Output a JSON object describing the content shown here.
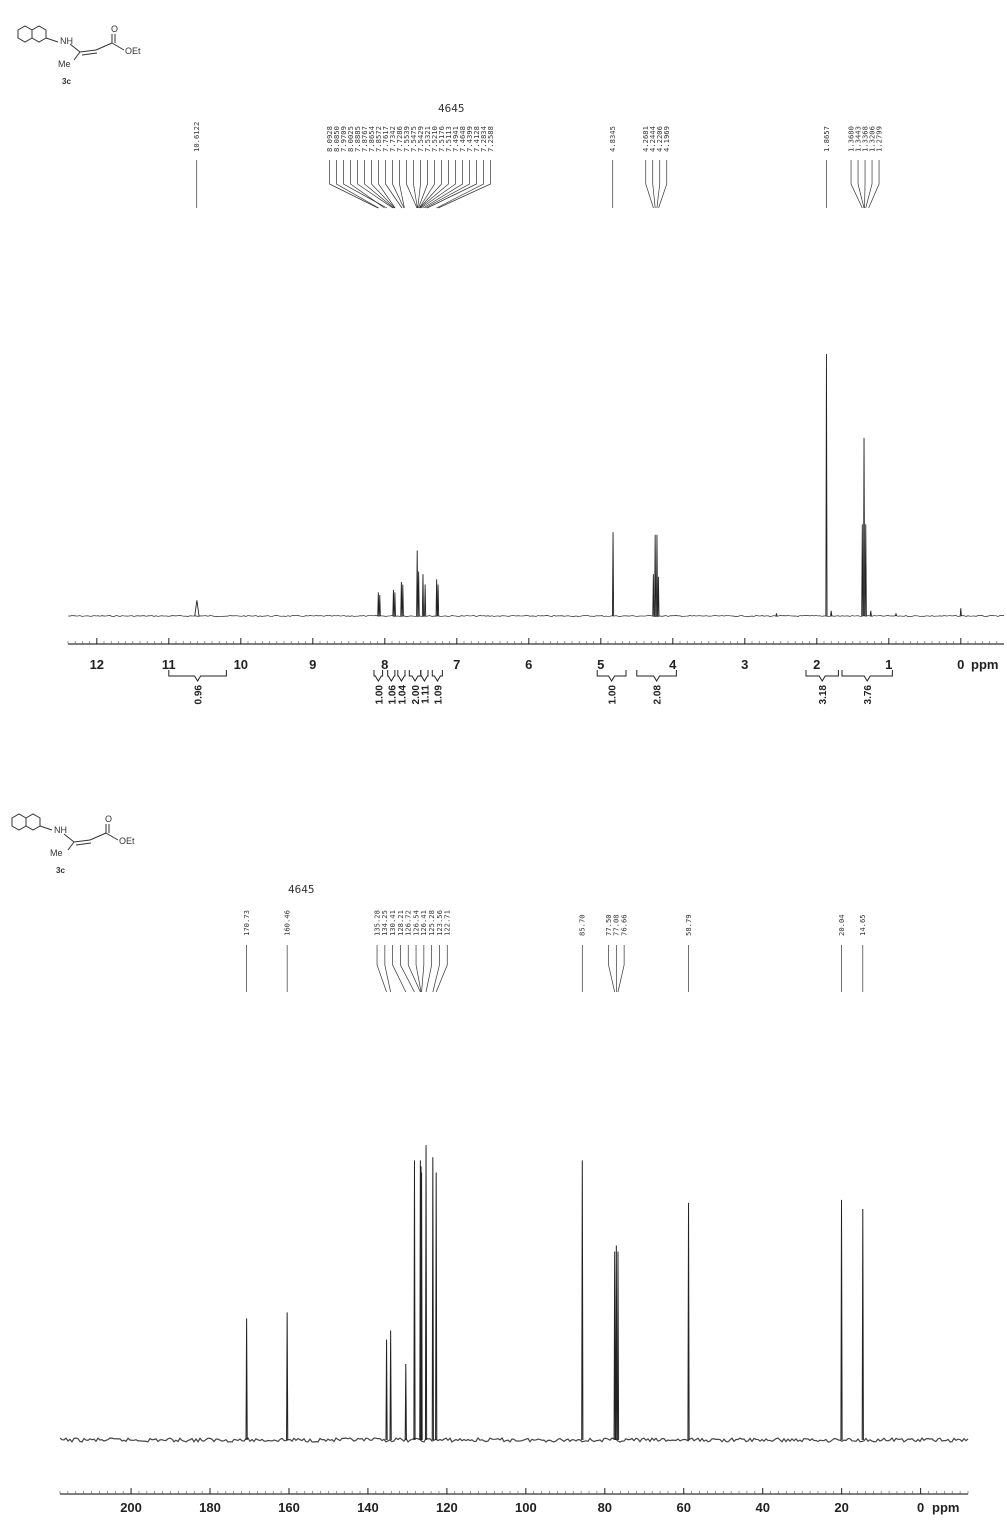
{
  "molecule": {
    "labels": {
      "nh": "NH",
      "me": "Me",
      "carbonyl_o": "O",
      "oet": "OEt"
    },
    "compound_label": "3c"
  },
  "chart_data": [
    {
      "type": "line",
      "sample_id": "4645",
      "xlabel": "ppm",
      "xlim": [
        12.4,
        -0.6
      ],
      "x_ticks": [
        12,
        11,
        10,
        9,
        8,
        7,
        6,
        5,
        4,
        3,
        2,
        1,
        0
      ],
      "grid": false,
      "peak_labels": [
        {
          "group": [
            10.6122
          ],
          "labels": [
            "10.6122"
          ],
          "anchor": 10.6122
        },
        {
          "group": [
            8.0928,
            8.085,
            7.9709,
            8.0025,
            7.8885,
            7.8767,
            7.8654,
            7.8572,
            7.7617,
            7.7342,
            7.7286,
            7.5539,
            7.5475,
            7.5429,
            7.5321,
            7.521,
            7.5176,
            7.5113,
            7.4941,
            7.4648,
            7.4399,
            7.4128,
            7.2834,
            7.2588
          ],
          "labels": [
            "8.0928",
            "8.0850",
            "7.9709",
            "8.0025",
            "7.8885",
            "7.8767",
            "7.8654",
            "7.8572",
            "7.7617",
            "7.7342",
            "7.7286",
            "7.5539",
            "7.5475",
            "7.5429",
            "7.5321",
            "7.5210",
            "7.5176",
            "7.5113",
            "7.4941",
            "7.4648",
            "7.4399",
            "7.4128",
            "7.2834",
            "7.2588"
          ],
          "anchor": 7.65
        },
        {
          "group": [
            4.8345
          ],
          "labels": [
            "4.8345"
          ],
          "anchor": 4.8345
        },
        {
          "group": [
            4.2681,
            4.2444,
            4.2206,
            4.1969
          ],
          "labels": [
            "4.2681",
            "4.2444",
            "4.2206",
            "4.1969"
          ],
          "anchor": 4.23
        },
        {
          "group": [
            1.8657
          ],
          "labels": [
            "1.8657"
          ],
          "anchor": 1.8657
        },
        {
          "group": [
            1.368,
            1.3443,
            1.3368,
            1.3206,
            1.2799
          ],
          "labels": [
            "1.3680",
            "1.3443",
            "1.3368",
            "1.3206",
            "1.2799"
          ],
          "anchor": 1.33
        }
      ],
      "peaks": [
        {
          "x": 10.61,
          "h": 0.06,
          "w": 0.03
        },
        {
          "x": 8.09,
          "h": 0.09
        },
        {
          "x": 8.07,
          "h": 0.08
        },
        {
          "x": 7.88,
          "h": 0.1
        },
        {
          "x": 7.86,
          "h": 0.09
        },
        {
          "x": 7.77,
          "h": 0.13
        },
        {
          "x": 7.75,
          "h": 0.12
        },
        {
          "x": 7.55,
          "h": 0.25
        },
        {
          "x": 7.53,
          "h": 0.17
        },
        {
          "x": 7.47,
          "h": 0.16
        },
        {
          "x": 7.44,
          "h": 0.12
        },
        {
          "x": 7.28,
          "h": 0.14
        },
        {
          "x": 7.26,
          "h": 0.12
        },
        {
          "x": 4.83,
          "h": 0.32
        },
        {
          "x": 4.27,
          "h": 0.16
        },
        {
          "x": 4.245,
          "h": 0.31
        },
        {
          "x": 4.22,
          "h": 0.31
        },
        {
          "x": 4.2,
          "h": 0.15
        },
        {
          "x": 2.56,
          "h": 0.01
        },
        {
          "x": 1.866,
          "h": 1.0
        },
        {
          "x": 1.8,
          "h": 0.02
        },
        {
          "x": 1.368,
          "h": 0.35
        },
        {
          "x": 1.344,
          "h": 0.68
        },
        {
          "x": 1.32,
          "h": 0.35
        },
        {
          "x": 1.25,
          "h": 0.02
        },
        {
          "x": 0.9,
          "h": 0.01
        },
        {
          "x": 0.0,
          "h": 0.03
        }
      ],
      "integrations": [
        {
          "from": 11.0,
          "to": 10.2,
          "value": "0.96"
        },
        {
          "from": 8.15,
          "to": 8.03,
          "value": "1.00"
        },
        {
          "from": 7.96,
          "to": 7.86,
          "value": "1.06"
        },
        {
          "from": 7.82,
          "to": 7.72,
          "value": "1.04"
        },
        {
          "from": 7.66,
          "to": 7.5,
          "value": "2.00"
        },
        {
          "from": 7.5,
          "to": 7.4,
          "value": "1.11"
        },
        {
          "from": 7.34,
          "to": 7.2,
          "value": "1.09"
        },
        {
          "from": 5.05,
          "to": 4.65,
          "value": "1.00"
        },
        {
          "from": 4.5,
          "to": 3.95,
          "value": "2.08"
        },
        {
          "from": 2.15,
          "to": 1.7,
          "value": "3.18"
        },
        {
          "from": 1.65,
          "to": 0.95,
          "value": "3.76"
        }
      ]
    },
    {
      "type": "line",
      "sample_id": "4645",
      "xlabel": "ppm",
      "xlim": [
        218,
        -12
      ],
      "x_ticks": [
        200,
        180,
        160,
        140,
        120,
        100,
        80,
        60,
        40,
        20,
        0
      ],
      "grid": false,
      "peak_labels": [
        {
          "group": [
            170.73
          ],
          "labels": [
            "170.73"
          ],
          "anchor": 170.73
        },
        {
          "group": [
            160.46
          ],
          "labels": [
            "160.46"
          ],
          "anchor": 160.46
        },
        {
          "group": [
            135.28,
            134.25,
            130.41,
            128.21,
            126.72,
            126.54,
            126.41,
            125.28,
            123.56,
            122.71
          ],
          "labels": [
            "135.28",
            "134.25",
            "130.41",
            "128.21",
            "126.72",
            "126.54",
            "126.41",
            "125.28",
            "123.56",
            "122.71"
          ],
          "anchor": 128.8
        },
        {
          "group": [
            85.7
          ],
          "labels": [
            "85.70"
          ],
          "anchor": 85.7
        },
        {
          "group": [
            77.5,
            77.08,
            76.66
          ],
          "labels": [
            "77.50",
            "77.08",
            "76.66"
          ],
          "anchor": 77.08
        },
        {
          "group": [
            58.79
          ],
          "labels": [
            "58.79"
          ],
          "anchor": 58.79
        },
        {
          "group": [
            20.04
          ],
          "labels": [
            "20.04"
          ],
          "anchor": 20.04
        },
        {
          "group": [
            14.65
          ],
          "labels": [
            "14.65"
          ],
          "anchor": 14.65
        }
      ],
      "peaks": [
        {
          "x": 170.73,
          "h": 0.4
        },
        {
          "x": 160.46,
          "h": 0.42
        },
        {
          "x": 135.28,
          "h": 0.33
        },
        {
          "x": 134.25,
          "h": 0.36
        },
        {
          "x": 130.41,
          "h": 0.25
        },
        {
          "x": 128.21,
          "h": 0.92
        },
        {
          "x": 126.72,
          "h": 0.92
        },
        {
          "x": 126.54,
          "h": 0.9
        },
        {
          "x": 126.41,
          "h": 0.88
        },
        {
          "x": 125.28,
          "h": 0.97
        },
        {
          "x": 123.56,
          "h": 0.93
        },
        {
          "x": 122.71,
          "h": 0.88
        },
        {
          "x": 85.7,
          "h": 0.92
        },
        {
          "x": 77.5,
          "h": 0.62
        },
        {
          "x": 77.08,
          "h": 0.64
        },
        {
          "x": 76.66,
          "h": 0.62
        },
        {
          "x": 58.79,
          "h": 0.78
        },
        {
          "x": 20.04,
          "h": 0.79
        },
        {
          "x": 14.65,
          "h": 0.76
        }
      ]
    }
  ]
}
